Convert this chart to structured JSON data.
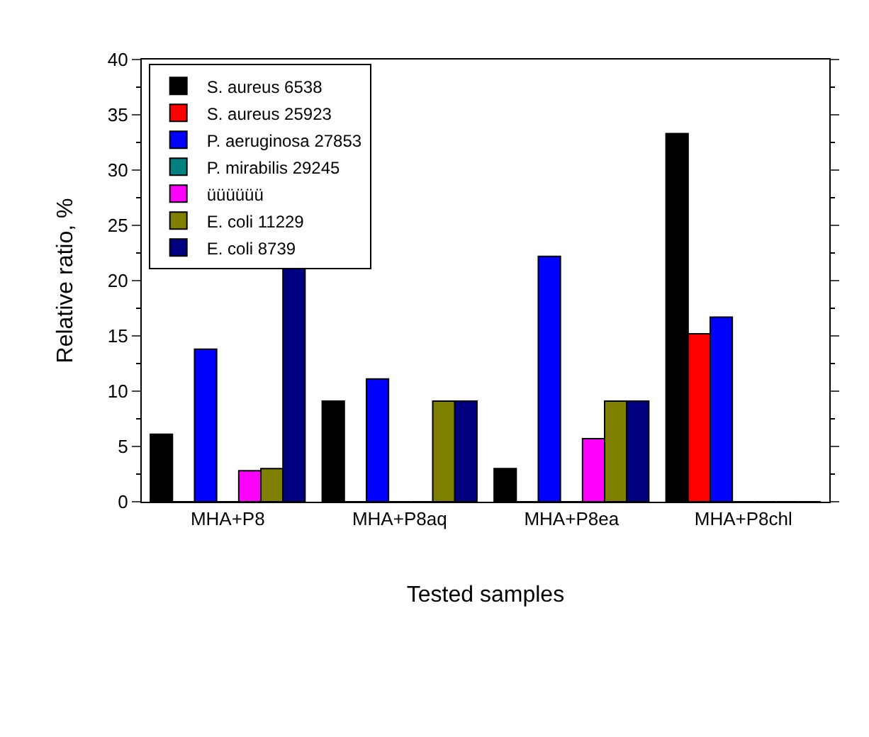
{
  "chart_data": {
    "type": "bar",
    "xlabel": "Tested samples",
    "ylabel": "Relative ratio, %",
    "categories": [
      "MHA+P8",
      "MHA+P8aq",
      "MHA+P8ea",
      "MHA+P8chl"
    ],
    "series": [
      {
        "name": "S. aureus 6538",
        "color": "#000000",
        "values": [
          6.1,
          9.1,
          3.0,
          33.3
        ]
      },
      {
        "name": "S. aureus 25923",
        "color": "#ff0000",
        "values": [
          0,
          0,
          0,
          15.2
        ]
      },
      {
        "name": "P. aeruginosa 27853",
        "color": "#0000ff",
        "values": [
          13.8,
          11.1,
          22.2,
          16.7
        ]
      },
      {
        "name": "P. mirabilis 29245",
        "color": "#008080",
        "values": [
          0,
          0,
          0,
          0
        ]
      },
      {
        "name": "üüüüüü",
        "color": "#ff00ff",
        "values": [
          2.8,
          0,
          5.7,
          0
        ]
      },
      {
        "name": "E. coli 11229",
        "color": "#808000",
        "values": [
          3.0,
          9.1,
          9.1,
          0
        ]
      },
      {
        "name": "E. coli 8739",
        "color": "#000080",
        "values": [
          21.1,
          9.1,
          9.1,
          0
        ]
      }
    ],
    "ylim": [
      0,
      40
    ],
    "yticks": [
      0,
      5,
      10,
      15,
      20,
      25,
      30,
      35,
      40
    ],
    "legend": "top left"
  }
}
